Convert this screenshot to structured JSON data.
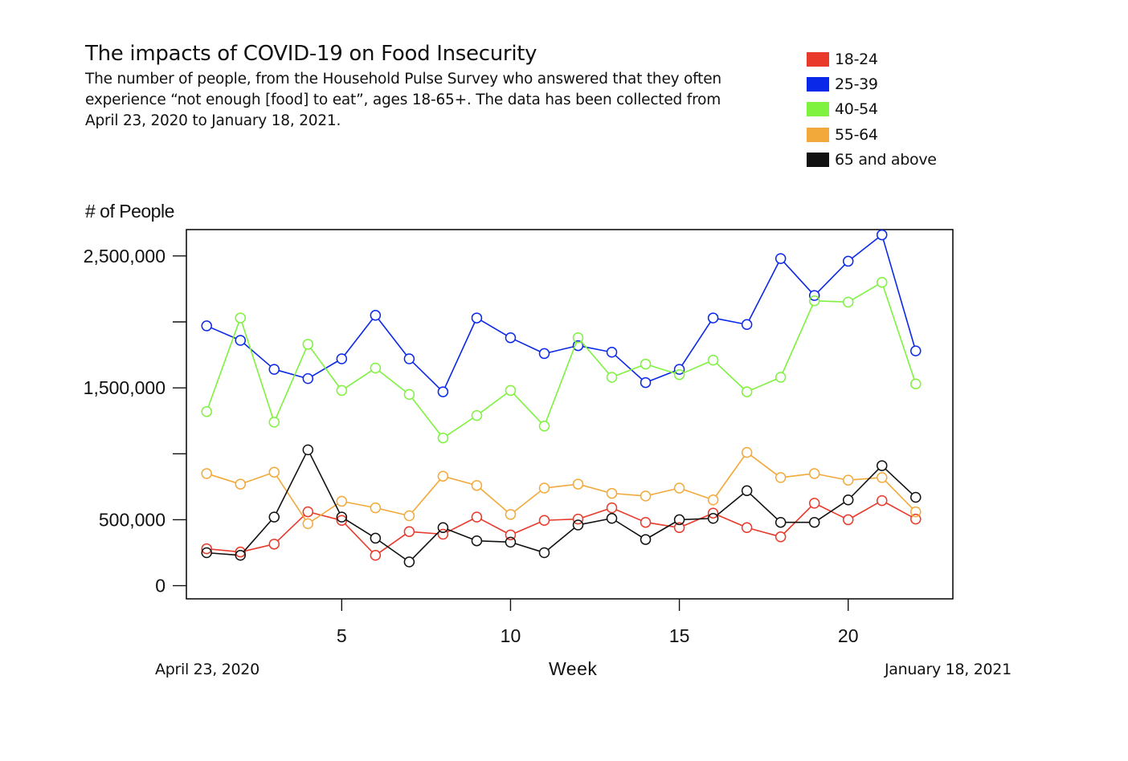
{
  "chart_data": {
    "type": "line",
    "title": "The impacts of COVID-19 on Food Insecurity",
    "subtitle": "The number of people, from the Household Pulse Survey who answered that they often experience “not enough [food] to eat”, ages 18-65+. The data has been collected from April 23, 2020 to January 18, 2021.",
    "ylabel": "# of People",
    "xlabel": "Week",
    "x_start_label": "April 23, 2020",
    "x_end_label": "January 18, 2021",
    "x": [
      1,
      2,
      3,
      4,
      5,
      6,
      7,
      8,
      9,
      10,
      11,
      12,
      13,
      14,
      15,
      16,
      17,
      18,
      19,
      20,
      21,
      22
    ],
    "xlim": [
      0.4,
      23.1
    ],
    "ylim": [
      -100000,
      2700000
    ],
    "x_ticks": [
      5,
      10,
      15,
      20
    ],
    "y_ticks": [
      {
        "value": 0,
        "label": "0"
      },
      {
        "value": 500000,
        "label": "500,000"
      },
      {
        "value": 1000000,
        "label": ""
      },
      {
        "value": 1500000,
        "label": "1,500,000"
      },
      {
        "value": 2000000,
        "label": ""
      },
      {
        "value": 2500000,
        "label": "2,500,000"
      }
    ],
    "grid": false,
    "legend_position": "top-right",
    "series": [
      {
        "name": "18-24",
        "color": "#e8392a",
        "values": [
          280000,
          255000,
          315000,
          560000,
          495000,
          230000,
          410000,
          390000,
          520000,
          385000,
          495000,
          505000,
          590000,
          480000,
          440000,
          550000,
          440000,
          370000,
          625000,
          500000,
          645000,
          505000
        ]
      },
      {
        "name": "25-39",
        "color": "#0a28e8",
        "values": [
          1970000,
          1860000,
          1640000,
          1570000,
          1720000,
          2050000,
          1720000,
          1470000,
          2030000,
          1880000,
          1760000,
          1820000,
          1770000,
          1540000,
          1640000,
          2030000,
          1980000,
          2480000,
          2200000,
          2460000,
          2660000,
          1780000
        ]
      },
      {
        "name": "40-54",
        "color": "#7ef23e",
        "values": [
          1320000,
          2030000,
          1240000,
          1830000,
          1480000,
          1650000,
          1450000,
          1120000,
          1290000,
          1480000,
          1210000,
          1880000,
          1580000,
          1680000,
          1600000,
          1710000,
          1470000,
          1580000,
          2160000,
          2150000,
          2300000,
          1530000
        ]
      },
      {
        "name": "55-64",
        "color": "#f2a93a",
        "values": [
          850000,
          770000,
          860000,
          470000,
          640000,
          590000,
          530000,
          830000,
          760000,
          540000,
          740000,
          770000,
          700000,
          680000,
          740000,
          650000,
          1010000,
          820000,
          850000,
          800000,
          820000,
          560000
        ]
      },
      {
        "name": "65 and above",
        "color": "#111111",
        "values": [
          250000,
          230000,
          520000,
          1030000,
          520000,
          360000,
          180000,
          440000,
          340000,
          330000,
          250000,
          460000,
          510000,
          350000,
          500000,
          510000,
          720000,
          480000,
          480000,
          650000,
          910000,
          670000
        ]
      }
    ]
  }
}
